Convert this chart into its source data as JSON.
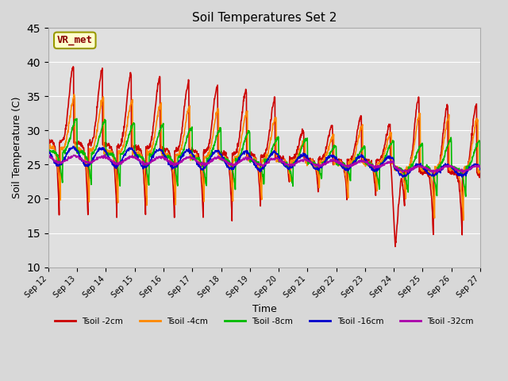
{
  "title": "Soil Temperatures Set 2",
  "xlabel": "Time",
  "ylabel": "Soil Temperature (C)",
  "ylim": [
    10,
    45
  ],
  "yticks": [
    10,
    15,
    20,
    25,
    30,
    35,
    40,
    45
  ],
  "fig_bg_color": "#d8d8d8",
  "plot_bg_color": "#e0e0e0",
  "series_colors": {
    "Tsoil -2cm": "#cc0000",
    "Tsoil -4cm": "#ff8800",
    "Tsoil -8cm": "#00bb00",
    "Tsoil -16cm": "#0000cc",
    "Tsoil -32cm": "#aa00aa"
  },
  "label_box": {
    "text": "VR_met",
    "fontsize": 9,
    "text_color": "#880000",
    "bg_color": "#ffffcc",
    "edge_color": "#999900"
  },
  "xtick_labels": [
    "Sep 12",
    "Sep 13",
    "Sep 14",
    "Sep 15",
    "Sep 16",
    "Sep 17",
    "Sep 18",
    "Sep 19",
    "Sep 20",
    "Sep 21",
    "Sep 22",
    "Sep 23",
    "Sep 24",
    "Sep 25",
    "Sep 26",
    "Sep 27"
  ],
  "grid_color": "#ffffff",
  "legend_labels": [
    "Tsoil -2cm",
    "Tsoil -4cm",
    "Tsoil -8cm",
    "Tsoil -16cm",
    "Tsoil -32cm"
  ]
}
